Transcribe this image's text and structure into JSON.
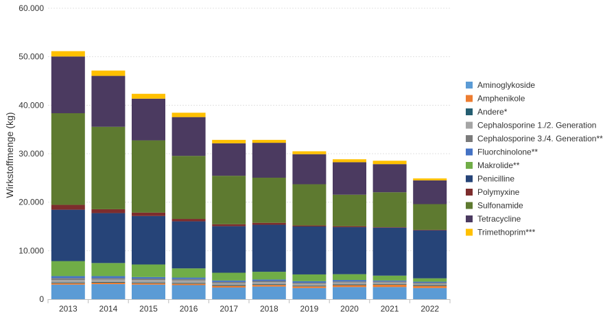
{
  "chart_data": {
    "type": "bar",
    "stacked": true,
    "ylabel": "Wirkstoffmenge (kg)",
    "xlabel": "",
    "ylim": [
      0,
      60000
    ],
    "yticks": [
      "0",
      "10.000",
      "20.000",
      "30.000",
      "40.000",
      "50.000",
      "60.000"
    ],
    "grid": true,
    "legend_position": "right",
    "categories": [
      "2013",
      "2014",
      "2015",
      "2016",
      "2017",
      "2018",
      "2019",
      "2020",
      "2021",
      "2022"
    ],
    "series": [
      {
        "name": "Aminoglykoside",
        "color": "#5b9bd5",
        "values": [
          3000,
          3100,
          3000,
          2900,
          2400,
          2600,
          2300,
          2500,
          2500,
          2300
        ]
      },
      {
        "name": "Amphenikole",
        "color": "#ed7d31",
        "values": [
          300,
          300,
          300,
          300,
          350,
          350,
          350,
          400,
          500,
          450
        ]
      },
      {
        "name": "Andere*",
        "color": "#255e71",
        "values": [
          150,
          150,
          150,
          150,
          150,
          150,
          150,
          150,
          150,
          150
        ]
      },
      {
        "name": "Cephalosporine 1./2. Generation",
        "color": "#a5a5a5",
        "values": [
          500,
          500,
          500,
          500,
          400,
          400,
          400,
          400,
          300,
          300
        ]
      },
      {
        "name": "Cephalosporine 3./4. Generation**",
        "color": "#7b7b7b",
        "values": [
          400,
          300,
          300,
          300,
          250,
          250,
          200,
          200,
          200,
          200
        ]
      },
      {
        "name": "Fluorchinolone**",
        "color": "#4472c4",
        "values": [
          400,
          400,
          300,
          300,
          300,
          300,
          300,
          300,
          200,
          200
        ]
      },
      {
        "name": "Makrolide**",
        "color": "#70ad47",
        "values": [
          3100,
          2700,
          2600,
          1900,
          1600,
          1600,
          1400,
          1200,
          1000,
          700
        ]
      },
      {
        "name": "Penicilline",
        "color": "#264478",
        "values": [
          10600,
          10300,
          10000,
          9700,
          9600,
          9700,
          9900,
          9700,
          9900,
          9900
        ]
      },
      {
        "name": "Polymyxine",
        "color": "#7d2d2d",
        "values": [
          1000,
          800,
          700,
          500,
          400,
          400,
          200,
          200,
          100,
          100
        ]
      },
      {
        "name": "Sulfonamide",
        "color": "#5e7a30",
        "values": [
          18900,
          17000,
          14900,
          13000,
          10000,
          9300,
          8500,
          6500,
          7200,
          5300
        ]
      },
      {
        "name": "Tetracycline",
        "color": "#4b3a60",
        "values": [
          11700,
          10500,
          8600,
          8000,
          6700,
          7200,
          6200,
          6700,
          5800,
          4900
        ]
      },
      {
        "name": "Trimethoprim***",
        "color": "#ffc000",
        "values": [
          1100,
          1100,
          1000,
          900,
          700,
          600,
          600,
          600,
          700,
          400
        ]
      }
    ]
  },
  "colors": {
    "grid": "#e0e0e0",
    "axis": "#bdbdbd",
    "text": "#333333"
  }
}
